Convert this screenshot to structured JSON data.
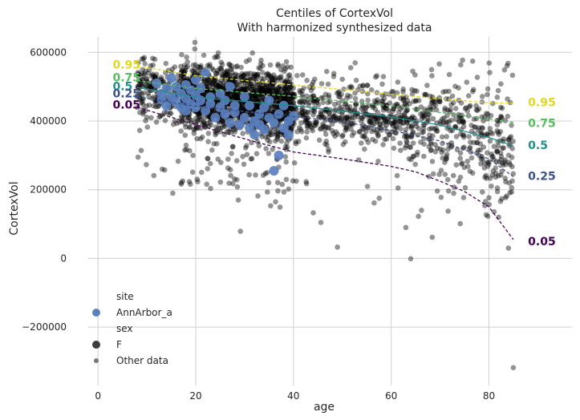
{
  "chart_data": {
    "type": "scatter",
    "title": "Centiles of CortexVol",
    "subtitle": "With harmonized synthesized data",
    "xlabel": "age",
    "ylabel": "CortexVol",
    "xlim": [
      -2,
      97
    ],
    "ylim": [
      -370000,
      645000
    ],
    "grid": true,
    "x_ticks": [
      0,
      20,
      40,
      60,
      80
    ],
    "x_tick_labels": [
      "0",
      "20",
      "40",
      "60",
      "80"
    ],
    "y_ticks": [
      -200000,
      0,
      200000,
      400000,
      600000
    ],
    "y_tick_labels": [
      "−200000",
      "0",
      "200000",
      "400000",
      "600000"
    ],
    "legend": {
      "placement": "bottom-left",
      "entries": [
        {
          "kind": "header",
          "label": "site"
        },
        {
          "kind": "marker",
          "label": "AnnArbor_a",
          "color": "#5a7fbf",
          "size": "large"
        },
        {
          "kind": "header",
          "label": "sex"
        },
        {
          "kind": "marker",
          "label": "F",
          "color": "#3d3d3d",
          "size": "large"
        },
        {
          "kind": "marker",
          "label": "Other data",
          "color": "#777777",
          "size": "small"
        }
      ]
    },
    "centile_lines": [
      {
        "name": "0.95",
        "color": "#e2d81b",
        "dashed": true,
        "x": [
          8,
          20,
          30,
          40,
          50,
          60,
          70,
          80,
          85
        ],
        "y": [
          560000,
          532000,
          518000,
          505000,
          492000,
          478000,
          465000,
          453000,
          452000
        ],
        "start_label_xy": [
          3,
          564000
        ],
        "end_label_xy": [
          88,
          455000
        ]
      },
      {
        "name": "0.75",
        "color": "#56be5d",
        "dashed": true,
        "x": [
          8,
          20,
          30,
          40,
          50,
          60,
          70,
          80,
          85
        ],
        "y": [
          518000,
          495000,
          483000,
          472000,
          458000,
          444000,
          425000,
          406000,
          396000
        ],
        "start_label_xy": [
          3,
          527000
        ],
        "end_label_xy": [
          88,
          394000
        ]
      },
      {
        "name": "0.5",
        "color": "#21908d",
        "dashed": false,
        "x": [
          8,
          20,
          30,
          40,
          50,
          60,
          70,
          80,
          85
        ],
        "y": [
          498000,
          470000,
          457000,
          445000,
          429000,
          412000,
          388000,
          352000,
          328000
        ],
        "start_label_xy": [
          3,
          502000
        ],
        "end_label_xy": [
          88,
          330000
        ]
      },
      {
        "name": "0.25",
        "color": "#3b528b",
        "dashed": true,
        "x": [
          8,
          20,
          30,
          40,
          50,
          60,
          70,
          80,
          85
        ],
        "y": [
          470000,
          443000,
          428000,
          413000,
          398000,
          373000,
          342000,
          290000,
          238000
        ],
        "start_label_xy": [
          3,
          480000
        ],
        "end_label_xy": [
          88,
          240000
        ]
      },
      {
        "name": "0.05",
        "color": "#440154",
        "dashed": true,
        "x": [
          8,
          20,
          30,
          40,
          50,
          60,
          65,
          70,
          75,
          80,
          85
        ],
        "y": [
          440000,
          390000,
          348000,
          310000,
          290000,
          268000,
          252000,
          225000,
          195000,
          150000,
          55000
        ],
        "start_label_xy": [
          3,
          448000
        ],
        "end_label_xy": [
          88,
          50000
        ]
      }
    ],
    "site_points": {
      "name": "AnnArbor_a",
      "color": "#5a7fbf",
      "points": [
        [
          12,
          510000
        ],
        [
          13,
          480000
        ],
        [
          13,
          462000
        ],
        [
          14,
          445000
        ],
        [
          14,
          495000
        ],
        [
          15,
          470000
        ],
        [
          15,
          525000
        ],
        [
          16,
          455000
        ],
        [
          16,
          500000
        ],
        [
          17,
          480000
        ],
        [
          17,
          440000
        ],
        [
          18,
          505000
        ],
        [
          18,
          465000
        ],
        [
          18,
          430000
        ],
        [
          19,
          490000
        ],
        [
          19,
          450000
        ],
        [
          20,
          475000
        ],
        [
          20,
          520000
        ],
        [
          20,
          440000
        ],
        [
          21,
          460000
        ],
        [
          21,
          495000
        ],
        [
          22,
          430000
        ],
        [
          22,
          540000
        ],
        [
          23,
          470000
        ],
        [
          23,
          450000
        ],
        [
          24,
          410000
        ],
        [
          25,
          480000
        ],
        [
          25,
          440000
        ],
        [
          26,
          460000
        ],
        [
          26,
          420000
        ],
        [
          27,
          500000
        ],
        [
          27,
          395000
        ],
        [
          28,
          445000
        ],
        [
          28,
          425000
        ],
        [
          29,
          390000
        ],
        [
          30,
          470000
        ],
        [
          30,
          410000
        ],
        [
          31,
          380000
        ],
        [
          31,
          445000
        ],
        [
          32,
          400000
        ],
        [
          32,
          360000
        ],
        [
          33,
          420000
        ],
        [
          33,
          390000
        ],
        [
          34,
          440000
        ],
        [
          34,
          375000
        ],
        [
          35,
          410000
        ],
        [
          35,
          460000
        ],
        [
          36,
          395000
        ],
        [
          36,
          255000
        ],
        [
          37,
          420000
        ],
        [
          37,
          300000
        ],
        [
          38,
          380000
        ],
        [
          38,
          445000
        ],
        [
          39,
          400000
        ],
        [
          39,
          360000
        ],
        [
          40,
          415000
        ]
      ]
    },
    "other_data": {
      "name": "Other data",
      "color": "#000000",
      "n": 2600,
      "x_range": [
        8,
        85
      ]
    }
  }
}
